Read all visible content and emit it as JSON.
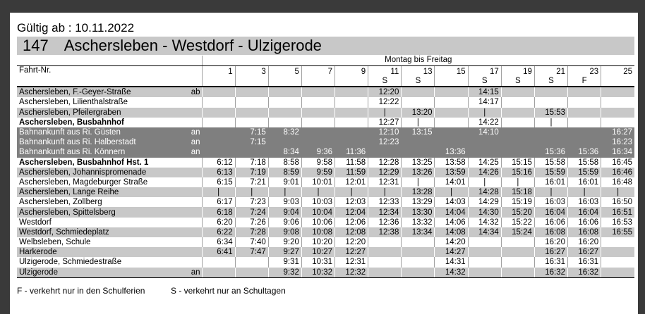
{
  "header": {
    "valid_from": "Gültig ab : 10.11.2022",
    "line": "147",
    "route": "Aschersleben - Westdorf - Ulzigerode"
  },
  "table": {
    "days": "Montag bis Freitag",
    "trip_label": "Fahrt-Nr.",
    "trips": [
      "1",
      "3",
      "5",
      "7",
      "9",
      "11",
      "13",
      "15",
      "17",
      "19",
      "21",
      "23",
      "25"
    ],
    "markers": [
      null,
      null,
      null,
      null,
      null,
      "S",
      "S",
      null,
      "S",
      "S",
      "S",
      "F",
      null
    ],
    "rows": [
      {
        "stop": "Aschersleben, F.-Geyer-Straße",
        "suffix": "ab",
        "times": [
          null,
          null,
          null,
          null,
          null,
          "12:20",
          null,
          null,
          "14:15",
          null,
          null,
          null,
          null
        ]
      },
      {
        "stop": "Aschersleben, Lilienthalstraße",
        "suffix": null,
        "times": [
          null,
          null,
          null,
          null,
          null,
          "12:22",
          null,
          null,
          "14:17",
          null,
          null,
          null,
          null
        ]
      },
      {
        "stop": "Aschersleben, Pfeilergraben",
        "suffix": null,
        "times": [
          null,
          null,
          null,
          null,
          null,
          "|",
          "13:20",
          null,
          "|",
          null,
          "15:53",
          null,
          null
        ]
      },
      {
        "stop": "Aschersleben, Busbahnhof",
        "suffix": null,
        "times": [
          null,
          null,
          null,
          null,
          null,
          "12:27",
          "|",
          null,
          "14:22",
          null,
          "|",
          null,
          null
        ]
      },
      {
        "stop": "Bahnankunft aus Ri. Güsten",
        "suffix": "an",
        "times": [
          null,
          "7:15",
          "8:32",
          null,
          null,
          "12:10",
          "13:15",
          null,
          "14:10",
          null,
          null,
          null,
          "16:27"
        ]
      },
      {
        "stop": "Bahnankunft aus Ri. Halberstadt",
        "suffix": "an",
        "times": [
          null,
          "7:15",
          null,
          null,
          null,
          "12:23",
          null,
          null,
          null,
          null,
          null,
          null,
          "16:23"
        ]
      },
      {
        "stop": "Bahnankunft aus Ri. Könnern",
        "suffix": "an",
        "times": [
          null,
          null,
          "8:34",
          "9:36",
          "11:36",
          null,
          null,
          "13:36",
          null,
          null,
          "15:36",
          "15:36",
          "16:34"
        ]
      },
      {
        "stop": "Aschersleben, Busbahnhof Hst. 1",
        "suffix": null,
        "times": [
          "6:12",
          "7:18",
          "8:58",
          "9:58",
          "11:58",
          "12:28",
          "13:25",
          "13:58",
          "14:25",
          "15:15",
          "15:58",
          "15:58",
          "16:45"
        ]
      },
      {
        "stop": "Aschersleben, Johannispromenade",
        "suffix": null,
        "times": [
          "6:13",
          "7:19",
          "8:59",
          "9:59",
          "11:59",
          "12:29",
          "13:26",
          "13:59",
          "14:26",
          "15:16",
          "15:59",
          "15:59",
          "16:46"
        ]
      },
      {
        "stop": "Aschersleben, Magdeburger Straße",
        "suffix": null,
        "times": [
          "6:15",
          "7:21",
          "9:01",
          "10:01",
          "12:01",
          "12:31",
          "|",
          "14:01",
          "|",
          "|",
          "16:01",
          "16:01",
          "16:48"
        ]
      },
      {
        "stop": "Aschersleben, Lange Reihe",
        "suffix": null,
        "times": [
          "|",
          "|",
          "|",
          "|",
          "|",
          "|",
          "13:28",
          "|",
          "14:28",
          "15:18",
          "|",
          "|",
          "|"
        ]
      },
      {
        "stop": "Aschersleben, Zollberg",
        "suffix": null,
        "times": [
          "6:17",
          "7:23",
          "9:03",
          "10:03",
          "12:03",
          "12:33",
          "13:29",
          "14:03",
          "14:29",
          "15:19",
          "16:03",
          "16:03",
          "16:50"
        ]
      },
      {
        "stop": "Aschersleben, Spittelsberg",
        "suffix": null,
        "times": [
          "6:18",
          "7:24",
          "9:04",
          "10:04",
          "12:04",
          "12:34",
          "13:30",
          "14:04",
          "14:30",
          "15:20",
          "16:04",
          "16:04",
          "16:51"
        ]
      },
      {
        "stop": "Westdorf",
        "suffix": null,
        "times": [
          "6:20",
          "7:26",
          "9:06",
          "10:06",
          "12:06",
          "12:36",
          "13:32",
          "14:06",
          "14:32",
          "15:22",
          "16:06",
          "16:06",
          "16:53"
        ]
      },
      {
        "stop": "Westdorf, Schmiedeplatz",
        "suffix": null,
        "times": [
          "6:22",
          "7:28",
          "9:08",
          "10:08",
          "12:08",
          "12:38",
          "13:34",
          "14:08",
          "14:34",
          "15:24",
          "16:08",
          "16:08",
          "16:55"
        ]
      },
      {
        "stop": "Welbsleben, Schule",
        "suffix": null,
        "times": [
          "6:34",
          "7:40",
          "9:20",
          "10:20",
          "12:20",
          null,
          null,
          "14:20",
          null,
          null,
          "16:20",
          "16:20",
          null
        ]
      },
      {
        "stop": "Harkerode",
        "suffix": null,
        "times": [
          "6:41",
          "7:47",
          "9:27",
          "10:27",
          "12:27",
          null,
          null,
          "14:27",
          null,
          null,
          "16:27",
          "16:27",
          null
        ]
      },
      {
        "stop": "Ulzigerode, Schmiedestraße",
        "suffix": null,
        "times": [
          null,
          null,
          "9:31",
          "10:31",
          "12:31",
          null,
          null,
          "14:31",
          null,
          null,
          "16:31",
          "16:31",
          null
        ]
      },
      {
        "stop": "Ulzigerode",
        "suffix": "an",
        "times": [
          null,
          null,
          "9:32",
          "10:32",
          "12:32",
          null,
          null,
          "14:32",
          null,
          null,
          "16:32",
          "16:32",
          null
        ]
      }
    ]
  },
  "legend": [
    "F - verkehrt nur in den Schulferien",
    "S - verkehrt nur an Schultagen"
  ]
}
